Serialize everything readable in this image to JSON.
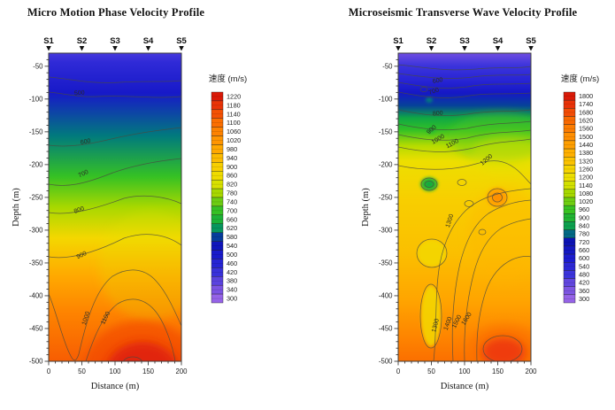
{
  "chart_data": [
    {
      "type": "heatmap",
      "title": "Micro Motion Phase Velocity Profile",
      "xlabel": "Distance (m)",
      "ylabel": "Depth (m)",
      "xlim": [
        0,
        200
      ],
      "ylim": [
        -500,
        -30
      ],
      "x_ticks": [
        0,
        50,
        100,
        150,
        200
      ],
      "y_ticks": [
        -50,
        -100,
        -150,
        -200,
        -250,
        -300,
        -350,
        -400,
        -450,
        -500
      ],
      "stations": [
        "S1",
        "S2",
        "S3",
        "S4",
        "S5"
      ],
      "station_positions_m": [
        0,
        50,
        100,
        150,
        200
      ],
      "colorbar": {
        "label": "速度 (m/s)",
        "min": 300,
        "max": 1220,
        "step": 40,
        "ticks": [
          1220,
          1180,
          1140,
          1100,
          1060,
          1020,
          980,
          940,
          900,
          860,
          820,
          780,
          740,
          700,
          660,
          620,
          580,
          540,
          500,
          460,
          420,
          380,
          340,
          300
        ]
      },
      "contour_labels": [
        "500",
        "600",
        "700",
        "800",
        "900",
        "1000",
        "1100"
      ],
      "velocity_depth_profile": [
        {
          "depth_m": -30,
          "velocity_m_s": 400
        },
        {
          "depth_m": -95,
          "velocity_m_s": 500
        },
        {
          "depth_m": -160,
          "velocity_m_s": 600
        },
        {
          "depth_m": -215,
          "velocity_m_s": 700
        },
        {
          "depth_m": -245,
          "velocity_m_s": 800
        },
        {
          "depth_m": -300,
          "velocity_m_s": 900
        },
        {
          "depth_m": -360,
          "velocity_m_s": 1000
        },
        {
          "depth_m": -420,
          "velocity_m_s": 1100
        },
        {
          "depth_m": -500,
          "velocity_m_s": 1190
        }
      ],
      "features": [
        "High-velocity dome (>1100 m/s) centered near x=140 m below -400 m",
        "Low-velocity trough in the 1000 m/s contour near x=45 m reaching -500 m"
      ]
    },
    {
      "type": "heatmap",
      "title": "Microseismic Transverse Wave Velocity Profile",
      "xlabel": "Distance (m)",
      "ylabel": "Depth (m)",
      "xlim": [
        0,
        200
      ],
      "ylim": [
        -500,
        -30
      ],
      "x_ticks": [
        0,
        50,
        100,
        150,
        200
      ],
      "y_ticks": [
        -50,
        -100,
        -150,
        -200,
        -250,
        -300,
        -350,
        -400,
        -450,
        -500
      ],
      "stations": [
        "S1",
        "S2",
        "S3",
        "S4",
        "S5"
      ],
      "station_positions_m": [
        0,
        50,
        100,
        150,
        200
      ],
      "colorbar": {
        "label": "速度 (m/s)",
        "min": 300,
        "max": 1800,
        "step": 60,
        "ticks": [
          1800,
          1740,
          1680,
          1620,
          1560,
          1500,
          1440,
          1380,
          1320,
          1260,
          1200,
          1140,
          1080,
          1020,
          960,
          900,
          840,
          780,
          720,
          660,
          600,
          540,
          480,
          420,
          360,
          300
        ]
      },
      "contour_labels": [
        "600",
        "700",
        "800",
        "900",
        "1000",
        "1100",
        "1200",
        "1300",
        "1300",
        "1400",
        "1500",
        "1600"
      ],
      "velocity_depth_profile": [
        {
          "depth_m": -30,
          "velocity_m_s": 420
        },
        {
          "depth_m": -55,
          "velocity_m_s": 500
        },
        {
          "depth_m": -75,
          "velocity_m_s": 600
        },
        {
          "depth_m": -95,
          "velocity_m_s": 700
        },
        {
          "depth_m": -125,
          "velocity_m_s": 800
        },
        {
          "depth_m": -140,
          "velocity_m_s": 900
        },
        {
          "depth_m": -150,
          "velocity_m_s": 1000
        },
        {
          "depth_m": -165,
          "velocity_m_s": 1100
        },
        {
          "depth_m": -185,
          "velocity_m_s": 1200
        },
        {
          "depth_m": -255,
          "velocity_m_s": 1300
        },
        {
          "depth_m": -400,
          "velocity_m_s": 1400
        },
        {
          "depth_m": -445,
          "velocity_m_s": 1500
        },
        {
          "depth_m": -470,
          "velocity_m_s": 1600
        },
        {
          "depth_m": -500,
          "velocity_m_s": 1700
        }
      ],
      "features": [
        "Low-velocity closed anomaly near x=45 m at -205 m",
        "High-velocity closed anomaly near x=150 m at -225 m",
        "Low-velocity yellow island near x=50 m between -300 and -420 m",
        "High-velocity core (>1700 m/s) near x=160 m at -480 m"
      ]
    }
  ]
}
